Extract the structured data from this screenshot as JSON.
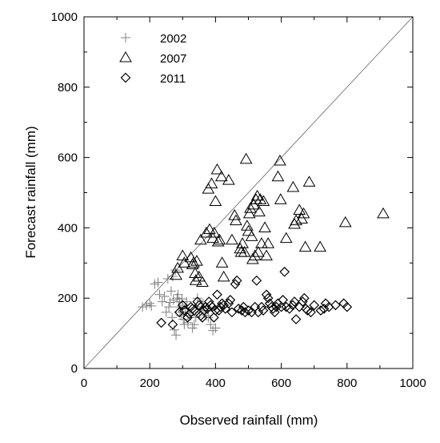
{
  "chart_data": {
    "type": "scatter",
    "title": "",
    "xlabel": "Observed rainfall (mm)",
    "ylabel": "Forecast rainfall (mm)",
    "xlim": [
      0,
      1000
    ],
    "ylim": [
      0,
      1000
    ],
    "xticks": [
      0,
      200,
      400,
      600,
      800,
      1000
    ],
    "yticks": [
      0,
      200,
      400,
      600,
      800,
      1000
    ],
    "xtick_labels": [
      "0",
      "200",
      "400",
      "600",
      "800",
      "1000"
    ],
    "ytick_labels": [
      "0",
      "200",
      "400",
      "600",
      "800",
      "1000"
    ],
    "grid": false,
    "legend_position": "top-left",
    "reference_line": "y = x",
    "series": [
      {
        "name": "2002",
        "marker": "plus",
        "color": "#808080",
        "points": [
          [
            178,
            175
          ],
          [
            190,
            180
          ],
          [
            200,
            185
          ],
          [
            205,
            178
          ],
          [
            215,
            240
          ],
          [
            225,
            245
          ],
          [
            230,
            210
          ],
          [
            238,
            190
          ],
          [
            245,
            205
          ],
          [
            250,
            160
          ],
          [
            255,
            255
          ],
          [
            258,
            175
          ],
          [
            262,
            188
          ],
          [
            265,
            220
          ],
          [
            268,
            145
          ],
          [
            270,
            262
          ],
          [
            272,
            195
          ],
          [
            275,
            110
          ],
          [
            278,
            280
          ],
          [
            280,
            95
          ],
          [
            283,
            200
          ],
          [
            286,
            210
          ],
          [
            288,
            175
          ],
          [
            290,
            190
          ],
          [
            292,
            160
          ],
          [
            295,
            150
          ],
          [
            298,
            198
          ],
          [
            300,
            180
          ],
          [
            302,
            140
          ],
          [
            305,
            125
          ],
          [
            308,
            170
          ],
          [
            312,
            190
          ],
          [
            316,
            130
          ],
          [
            320,
            160
          ],
          [
            325,
            150
          ],
          [
            330,
            115
          ],
          [
            335,
            125
          ],
          [
            340,
            145
          ],
          [
            345,
            200
          ],
          [
            352,
            160
          ],
          [
            358,
            175
          ],
          [
            362,
            185
          ],
          [
            368,
            165
          ],
          [
            372,
            150
          ],
          [
            378,
            145
          ],
          [
            385,
            125
          ],
          [
            392,
            108
          ],
          [
            400,
            115
          ]
        ]
      },
      {
        "name": "2007",
        "marker": "triangle",
        "color": "#000000",
        "points": [
          [
            280,
            265
          ],
          [
            285,
            285
          ],
          [
            300,
            320
          ],
          [
            305,
            300
          ],
          [
            325,
            315
          ],
          [
            330,
            295
          ],
          [
            333,
            300
          ],
          [
            338,
            270
          ],
          [
            343,
            305
          ],
          [
            340,
            250
          ],
          [
            350,
            260
          ],
          [
            355,
            365
          ],
          [
            360,
            245
          ],
          [
            372,
            385
          ],
          [
            378,
            510
          ],
          [
            382,
            395
          ],
          [
            388,
            525
          ],
          [
            392,
            370
          ],
          [
            396,
            385
          ],
          [
            400,
            475
          ],
          [
            405,
            565
          ],
          [
            408,
            360
          ],
          [
            412,
            365
          ],
          [
            418,
            545
          ],
          [
            420,
            300
          ],
          [
            425,
            260
          ],
          [
            440,
            535
          ],
          [
            450,
            365
          ],
          [
            458,
            435
          ],
          [
            462,
            420
          ],
          [
            475,
            340
          ],
          [
            478,
            330
          ],
          [
            482,
            355
          ],
          [
            488,
            330
          ],
          [
            493,
            595
          ],
          [
            496,
            405
          ],
          [
            500,
            390
          ],
          [
            503,
            440
          ],
          [
            506,
            455
          ],
          [
            510,
            375
          ],
          [
            513,
            310
          ],
          [
            516,
            465
          ],
          [
            520,
            320
          ],
          [
            523,
            480
          ],
          [
            527,
            490
          ],
          [
            530,
            330
          ],
          [
            533,
            445
          ],
          [
            536,
            480
          ],
          [
            540,
            355
          ],
          [
            546,
            475
          ],
          [
            550,
            400
          ],
          [
            555,
            320
          ],
          [
            560,
            355
          ],
          [
            590,
            545
          ],
          [
            596,
            590
          ],
          [
            598,
            480
          ],
          [
            615,
            370
          ],
          [
            636,
            515
          ],
          [
            640,
            410
          ],
          [
            645,
            420
          ],
          [
            655,
            450
          ],
          [
            662,
            425
          ],
          [
            668,
            440
          ],
          [
            673,
            345
          ],
          [
            685,
            530
          ],
          [
            718,
            345
          ],
          [
            795,
            415
          ],
          [
            910,
            440
          ]
        ]
      },
      {
        "name": "2011",
        "marker": "diamond",
        "color": "#000000",
        "points": [
          [
            235,
            130
          ],
          [
            270,
            125
          ],
          [
            290,
            160
          ],
          [
            300,
            180
          ],
          [
            305,
            165
          ],
          [
            315,
            145
          ],
          [
            320,
            155
          ],
          [
            325,
            175
          ],
          [
            330,
            170
          ],
          [
            335,
            165
          ],
          [
            345,
            190
          ],
          [
            350,
            180
          ],
          [
            355,
            150
          ],
          [
            360,
            145
          ],
          [
            365,
            165
          ],
          [
            370,
            175
          ],
          [
            375,
            170
          ],
          [
            380,
            190
          ],
          [
            385,
            180
          ],
          [
            390,
            175
          ],
          [
            395,
            145
          ],
          [
            400,
            165
          ],
          [
            405,
            210
          ],
          [
            410,
            165
          ],
          [
            415,
            175
          ],
          [
            420,
            185
          ],
          [
            425,
            180
          ],
          [
            430,
            170
          ],
          [
            440,
            185
          ],
          [
            445,
            195
          ],
          [
            450,
            160
          ],
          [
            460,
            240
          ],
          [
            465,
            250
          ],
          [
            470,
            170
          ],
          [
            480,
            165
          ],
          [
            485,
            175
          ],
          [
            490,
            160
          ],
          [
            500,
            165
          ],
          [
            510,
            160
          ],
          [
            520,
            175
          ],
          [
            525,
            250
          ],
          [
            530,
            160
          ],
          [
            540,
            175
          ],
          [
            545,
            165
          ],
          [
            555,
            210
          ],
          [
            560,
            200
          ],
          [
            565,
            185
          ],
          [
            570,
            175
          ],
          [
            575,
            170
          ],
          [
            580,
            160
          ],
          [
            585,
            175
          ],
          [
            590,
            185
          ],
          [
            600,
            175
          ],
          [
            605,
            195
          ],
          [
            610,
            275
          ],
          [
            615,
            175
          ],
          [
            625,
            170
          ],
          [
            635,
            180
          ],
          [
            640,
            190
          ],
          [
            645,
            140
          ],
          [
            655,
            175
          ],
          [
            665,
            190
          ],
          [
            670,
            200
          ],
          [
            675,
            170
          ],
          [
            680,
            165
          ],
          [
            690,
            160
          ],
          [
            700,
            180
          ],
          [
            720,
            165
          ],
          [
            730,
            170
          ],
          [
            735,
            185
          ],
          [
            745,
            175
          ],
          [
            765,
            180
          ],
          [
            790,
            185
          ],
          [
            800,
            175
          ]
        ]
      }
    ]
  }
}
